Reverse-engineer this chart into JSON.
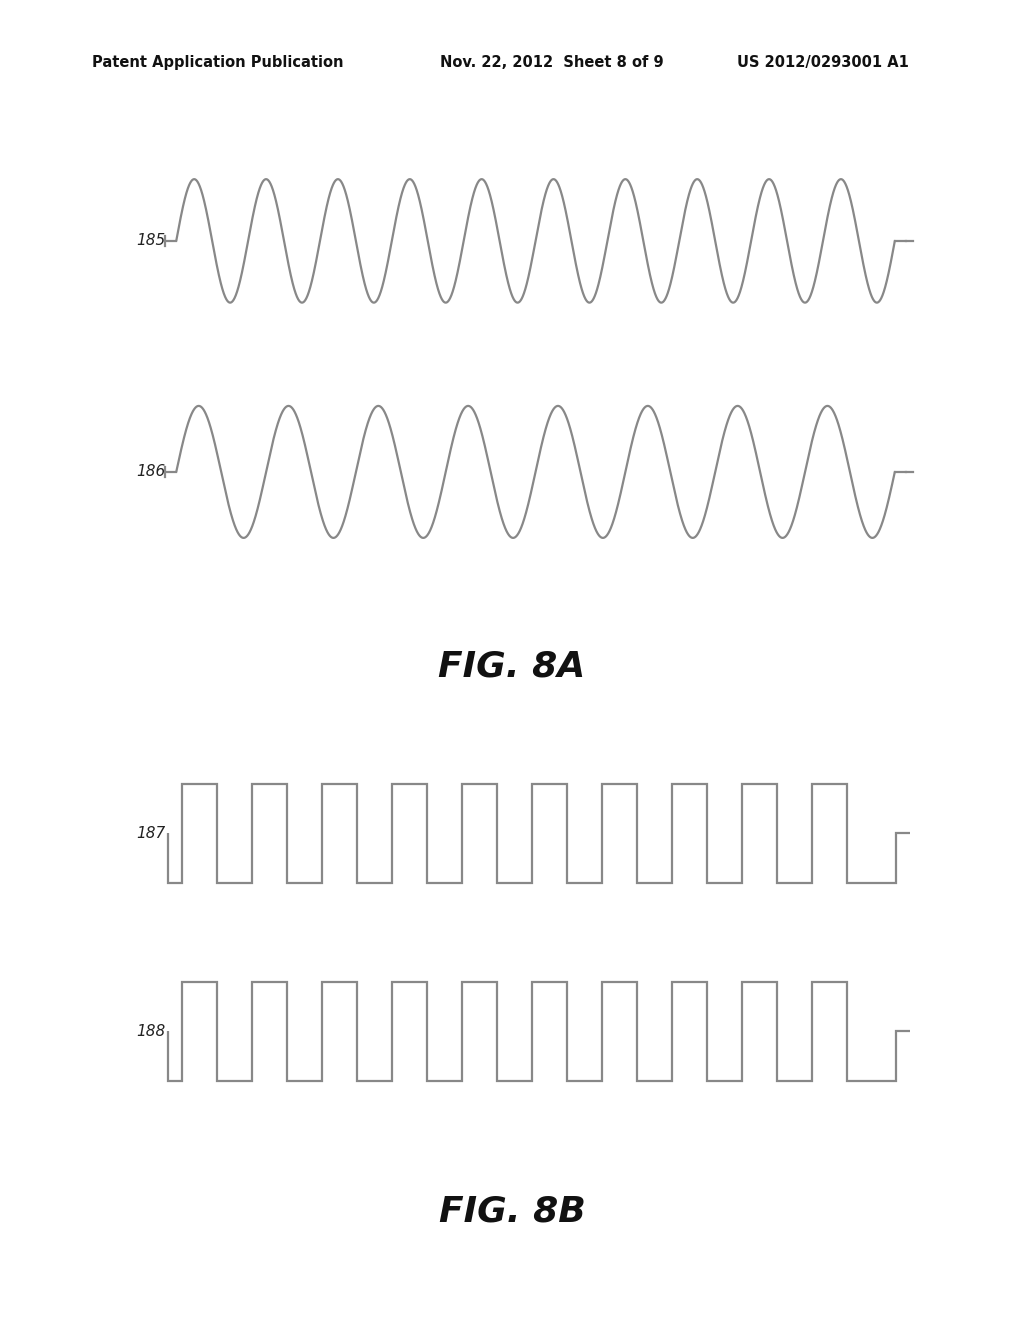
{
  "background_color": "#ffffff",
  "header_left": "Patent Application Publication",
  "header_mid": "Nov. 22, 2012  Sheet 8 of 9",
  "header_right": "US 2012/0293001 A1",
  "header_fontsize": 10.5,
  "fig8a_label": "FIG. 8A",
  "fig8b_label": "FIG. 8B",
  "fig_label_fontsize": 26,
  "signal_185_label": "185",
  "signal_186_label": "186",
  "signal_187_label": "187",
  "signal_188_label": "188",
  "signal_label_fontsize": 11,
  "line_color": "#888888",
  "line_width": 1.6,
  "sine_185_cycles": 10,
  "sine_186_cycles": 8,
  "square_187_cycles": 10,
  "square_188_cycles": 10,
  "square_duty": 0.5
}
